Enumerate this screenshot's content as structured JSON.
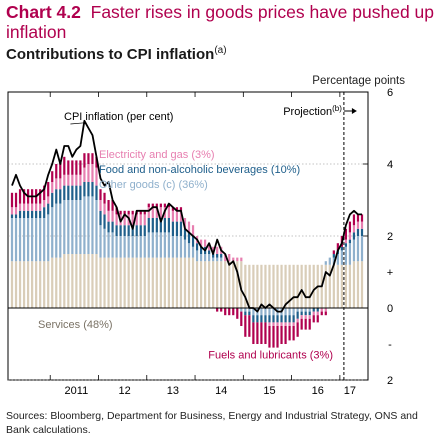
{
  "chart_number": "Chart 4.2",
  "chart_title": "Faster rises in goods prices have pushed up inflation",
  "subtitle": "Contributions to CPI inflation",
  "subtitle_note": "(a)",
  "unit_label": "Percentage points",
  "sources": "Sources: Bloomberg, Department for Business, Energy and Industrial Strategy, ONS and Bank calculations.",
  "colors": {
    "title": "#b0004e",
    "services": "#d9cdb8",
    "other_goods": "#8fb0cc",
    "food": "#1f5f8b",
    "electricity_gas": "#e77fb0",
    "fuels": "#b0004e",
    "cpi_line": "#000000"
  },
  "chart_data": {
    "type": "bar",
    "x_ticks": [
      "2011",
      "12",
      "13",
      "14",
      "15",
      "16",
      "17"
    ],
    "y_ticks": [
      "6",
      "4",
      "2",
      "+",
      "0",
      "-",
      "2"
    ],
    "ylim": [
      -2,
      6
    ],
    "projection_label": "Projection",
    "projection_note": "(b)",
    "months": [
      "2010-03",
      "2010-04",
      "2010-05",
      "2010-06",
      "2010-07",
      "2010-08",
      "2010-09",
      "2010-10",
      "2010-11",
      "2010-12",
      "2011-01",
      "2011-02",
      "2011-03",
      "2011-04",
      "2011-05",
      "2011-06",
      "2011-07",
      "2011-08",
      "2011-09",
      "2011-10",
      "2011-11",
      "2011-12",
      "2012-01",
      "2012-02",
      "2012-03",
      "2012-04",
      "2012-05",
      "2012-06",
      "2012-07",
      "2012-08",
      "2012-09",
      "2012-10",
      "2012-11",
      "2012-12",
      "2013-01",
      "2013-02",
      "2013-03",
      "2013-04",
      "2013-05",
      "2013-06",
      "2013-07",
      "2013-08",
      "2013-09",
      "2013-10",
      "2013-11",
      "2013-12",
      "2014-01",
      "2014-02",
      "2014-03",
      "2014-04",
      "2014-05",
      "2014-06",
      "2014-07",
      "2014-08",
      "2014-09",
      "2014-10",
      "2014-11",
      "2014-12",
      "2015-01",
      "2015-02",
      "2015-03",
      "2015-04",
      "2015-05",
      "2015-06",
      "2015-07",
      "2015-08",
      "2015-09",
      "2015-10",
      "2015-11",
      "2015-12",
      "2016-01",
      "2016-02",
      "2016-03",
      "2016-04",
      "2016-05",
      "2016-06",
      "2016-07",
      "2016-08",
      "2016-09",
      "2016-10",
      "2016-11",
      "2016-12",
      "2017-01",
      "2017-02",
      "2017-03",
      "2017-04",
      "2017-05",
      "2017-06"
    ],
    "series": [
      {
        "name": "Services (48%)",
        "key": "services",
        "label_position": "inside-left",
        "values": [
          1.3,
          1.3,
          1.3,
          1.3,
          1.3,
          1.3,
          1.3,
          1.3,
          1.3,
          1.3,
          1.4,
          1.4,
          1.4,
          1.5,
          1.5,
          1.5,
          1.5,
          1.5,
          1.5,
          1.5,
          1.5,
          1.5,
          1.4,
          1.4,
          1.4,
          1.4,
          1.4,
          1.4,
          1.4,
          1.4,
          1.4,
          1.4,
          1.4,
          1.4,
          1.4,
          1.4,
          1.4,
          1.4,
          1.4,
          1.4,
          1.4,
          1.4,
          1.4,
          1.4,
          1.4,
          1.4,
          1.3,
          1.3,
          1.3,
          1.3,
          1.3,
          1.3,
          1.3,
          1.3,
          1.3,
          1.3,
          1.3,
          1.3,
          1.2,
          1.2,
          1.2,
          1.2,
          1.2,
          1.2,
          1.2,
          1.2,
          1.2,
          1.2,
          1.2,
          1.2,
          1.2,
          1.2,
          1.2,
          1.2,
          1.2,
          1.2,
          1.2,
          1.2,
          1.2,
          1.2,
          1.2,
          1.2,
          1.2,
          1.2,
          1.2,
          1.3,
          1.3,
          1.3
        ]
      },
      {
        "name": "Other goods (c) (36%)",
        "key": "other_goods",
        "label_position": "legend",
        "values": [
          1.2,
          1.2,
          1.2,
          1.2,
          1.2,
          1.2,
          1.2,
          1.2,
          1.2,
          1.3,
          1.4,
          1.5,
          1.5,
          1.5,
          1.5,
          1.5,
          1.5,
          1.5,
          1.6,
          1.6,
          1.6,
          1.5,
          0.9,
          0.8,
          0.7,
          0.7,
          0.6,
          0.6,
          0.6,
          0.6,
          0.6,
          0.6,
          0.6,
          0.6,
          0.7,
          0.7,
          0.7,
          0.7,
          0.7,
          0.7,
          0.6,
          0.6,
          0.6,
          0.5,
          0.4,
          0.3,
          0.3,
          0.2,
          0.2,
          0.2,
          0.1,
          0.1,
          0.1,
          0.0,
          0.0,
          0.0,
          0.0,
          -0.1,
          -0.1,
          -0.1,
          -0.2,
          -0.2,
          -0.2,
          -0.2,
          -0.2,
          -0.2,
          -0.2,
          -0.2,
          -0.2,
          -0.2,
          -0.2,
          -0.1,
          -0.1,
          -0.1,
          -0.1,
          0.0,
          0.0,
          0.0,
          0.1,
          0.2,
          0.2,
          0.3,
          0.4,
          0.5,
          0.6,
          0.6,
          0.7,
          0.7
        ]
      },
      {
        "name": "Food and non-alcoholic beverages (10%)",
        "key": "food",
        "label_position": "legend",
        "values": [
          0.1,
          0.1,
          0.2,
          0.2,
          0.2,
          0.2,
          0.2,
          0.2,
          0.3,
          0.3,
          0.4,
          0.4,
          0.4,
          0.4,
          0.4,
          0.4,
          0.4,
          0.4,
          0.4,
          0.4,
          0.4,
          0.4,
          0.4,
          0.4,
          0.3,
          0.3,
          0.3,
          0.3,
          0.3,
          0.3,
          0.3,
          0.3,
          0.3,
          0.3,
          0.4,
          0.4,
          0.4,
          0.4,
          0.4,
          0.4,
          0.4,
          0.4,
          0.4,
          0.3,
          0.3,
          0.3,
          0.2,
          0.2,
          0.2,
          0.1,
          0.1,
          0.1,
          0.1,
          0.0,
          0.0,
          0.0,
          0.0,
          0.0,
          -0.1,
          -0.1,
          -0.2,
          -0.2,
          -0.2,
          -0.2,
          -0.2,
          -0.2,
          -0.2,
          -0.2,
          -0.2,
          -0.2,
          -0.2,
          -0.2,
          -0.1,
          -0.1,
          -0.1,
          -0.1,
          -0.1,
          0.0,
          0.0,
          0.0,
          0.1,
          0.1,
          0.1,
          0.1,
          0.1,
          0.2,
          0.2,
          0.2
        ]
      },
      {
        "name": "Electricity and gas (3%)",
        "key": "electricity_gas",
        "label_position": "legend",
        "values": [
          0.2,
          0.2,
          0.2,
          0.2,
          0.2,
          0.2,
          0.2,
          0.2,
          0.2,
          0.2,
          0.3,
          0.3,
          0.3,
          0.3,
          0.3,
          0.3,
          0.3,
          0.3,
          0.4,
          0.5,
          0.5,
          0.5,
          0.3,
          0.3,
          0.3,
          0.3,
          0.3,
          0.3,
          0.3,
          0.3,
          0.3,
          0.3,
          0.3,
          0.3,
          0.3,
          0.3,
          0.3,
          0.3,
          0.3,
          0.3,
          0.3,
          0.3,
          0.3,
          0.3,
          0.3,
          0.3,
          0.2,
          0.2,
          0.2,
          0.2,
          0.2,
          0.2,
          0.2,
          0.2,
          0.2,
          0.1,
          0.1,
          0.1,
          0.0,
          0.0,
          0.0,
          0.0,
          0.0,
          0.0,
          -0.1,
          -0.1,
          -0.1,
          -0.1,
          -0.1,
          -0.1,
          -0.1,
          -0.1,
          -0.1,
          -0.1,
          -0.1,
          -0.1,
          -0.1,
          -0.1,
          -0.1,
          0.0,
          0.0,
          0.0,
          0.0,
          0.1,
          0.2,
          0.2,
          0.2,
          0.2
        ]
      },
      {
        "name": "Fuels and lubricants (3%)",
        "key": "fuels",
        "label_position": "below-bars",
        "values": [
          0.4,
          0.4,
          0.4,
          0.4,
          0.4,
          0.4,
          0.4,
          0.4,
          0.4,
          0.4,
          0.3,
          0.4,
          0.5,
          0.5,
          0.4,
          0.4,
          0.4,
          0.4,
          0.4,
          0.3,
          0.3,
          0.3,
          0.3,
          0.3,
          0.3,
          0.3,
          0.2,
          0.1,
          0.1,
          0.1,
          0.1,
          0.1,
          0.1,
          0.1,
          0.1,
          0.1,
          0.1,
          0.1,
          0.1,
          0.1,
          0.1,
          0.1,
          0.1,
          0.0,
          0.0,
          0.0,
          0.0,
          0.0,
          0.0,
          0.0,
          0.0,
          -0.1,
          -0.1,
          -0.2,
          -0.2,
          -0.2,
          -0.3,
          -0.4,
          -0.6,
          -0.6,
          -0.6,
          -0.6,
          -0.6,
          -0.6,
          -0.6,
          -0.6,
          -0.6,
          -0.5,
          -0.5,
          -0.4,
          -0.4,
          -0.4,
          -0.3,
          -0.3,
          -0.3,
          -0.2,
          -0.2,
          -0.1,
          -0.1,
          0.0,
          0.1,
          0.2,
          0.3,
          0.3,
          0.3,
          0.3,
          0.2,
          0.2
        ]
      }
    ],
    "cpi_line": {
      "name": "CPI inflation (per cent)",
      "values": [
        3.4,
        3.7,
        3.4,
        3.2,
        3.1,
        3.1,
        3.1,
        3.2,
        3.3,
        3.7,
        4.0,
        4.4,
        4.0,
        4.5,
        4.5,
        4.2,
        4.4,
        4.5,
        5.2,
        5.0,
        4.8,
        4.2,
        3.6,
        3.4,
        3.5,
        3.0,
        2.8,
        2.4,
        2.6,
        2.5,
        2.2,
        2.7,
        2.7,
        2.7,
        2.7,
        2.8,
        2.8,
        2.4,
        2.7,
        2.9,
        2.8,
        2.7,
        2.7,
        2.2,
        2.1,
        2.0,
        1.9,
        1.7,
        1.6,
        1.8,
        1.5,
        1.9,
        1.6,
        1.5,
        1.2,
        1.3,
        1.0,
        0.5,
        0.3,
        0.0,
        0.0,
        -0.1,
        0.1,
        0.0,
        0.1,
        0.0,
        -0.1,
        -0.1,
        0.1,
        0.2,
        0.3,
        0.3,
        0.5,
        0.3,
        0.3,
        0.5,
        0.6,
        0.6,
        1.0,
        0.9,
        1.2,
        1.6,
        1.8,
        2.3,
        2.6,
        2.7,
        2.6,
        2.6
      ]
    }
  }
}
